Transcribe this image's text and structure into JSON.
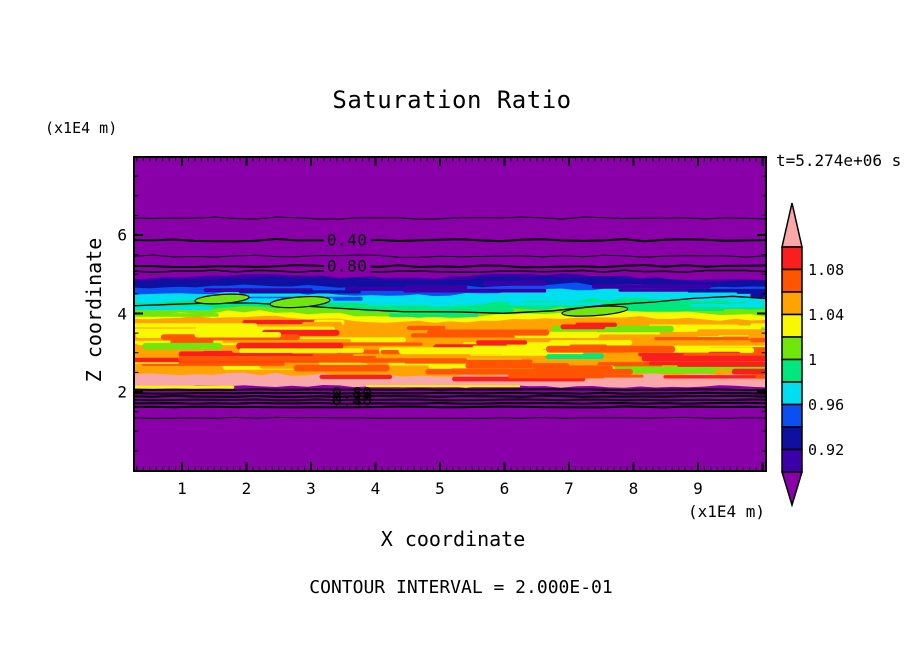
{
  "title": "Saturation Ratio",
  "time_annotation": "t=5.274e+06 s",
  "footer_note": "CONTOUR INTERVAL = 2.000E-01",
  "axes": {
    "x": {
      "label": "X coordinate",
      "unit": "(x1E4 m)",
      "tick_labels": [
        "1",
        "2",
        "3",
        "4",
        "5",
        "6",
        "7",
        "8",
        "9"
      ],
      "tick_values": [
        1,
        2,
        3,
        4,
        5,
        6,
        7,
        8,
        9
      ],
      "range": [
        0.24,
        10.07
      ],
      "minor_step": 0.1,
      "major_step": 1
    },
    "z": {
      "label": "Z coordinate",
      "unit": "(x1E4 m)",
      "tick_labels": [
        "6",
        "4",
        "2"
      ],
      "tick_values": [
        6,
        4,
        2
      ],
      "range": [
        0,
        8.05
      ],
      "minor_step": 0.5,
      "major_step": 2
    }
  },
  "colorbar": {
    "orientation": "vertical",
    "tick_labels": [
      {
        "text": "1.08",
        "level": 1.08
      },
      {
        "text": "1.04",
        "level": 1.04
      },
      {
        "text": "1",
        "level": 1.0
      },
      {
        "text": "0.96",
        "level": 0.96
      },
      {
        "text": "0.92",
        "level": 0.92
      }
    ],
    "cells": [
      {
        "color": "#FA1E1E",
        "min": 1.08,
        "max": 1.1
      },
      {
        "color": "#FF5400",
        "min": 1.06,
        "max": 1.08
      },
      {
        "color": "#FFA300",
        "min": 1.04,
        "max": 1.06
      },
      {
        "color": "#F8F800",
        "min": 1.02,
        "max": 1.04
      },
      {
        "color": "#70E60C",
        "min": 1.0,
        "max": 1.02
      },
      {
        "color": "#00E87D",
        "min": 0.98,
        "max": 1.0
      },
      {
        "color": "#00DFF0",
        "min": 0.96,
        "max": 0.98
      },
      {
        "color": "#0A50F0",
        "min": 0.94,
        "max": 0.96
      },
      {
        "color": "#1010A0",
        "min": 0.92,
        "max": 0.94
      },
      {
        "color": "#3C00A8",
        "min": 0.9,
        "max": 0.92
      }
    ],
    "over": {
      "color": "#F8A8A8",
      "meaning": "> 1.10"
    },
    "under": {
      "color": "#8A00A8",
      "meaning": "< 0.90"
    }
  },
  "chart_data": {
    "type": "heatmap",
    "title": "Saturation Ratio",
    "xlabel": "X coordinate (x1E4 m)",
    "ylabel": "Z coordinate (x1E4 m)",
    "x_range": [
      0.24,
      10.07
    ],
    "z_range": [
      0,
      8.05
    ],
    "time": "t=5.274e+06 s",
    "contour_interval": 0.2,
    "background_value": "< 0.90 (purple) above z=5.0 and below z=2.1",
    "bands": [
      {
        "name": "darkviolet",
        "color": "#3C00A8",
        "value_range": "0.90-0.92",
        "top_profile_z": [
          4.88,
          4.93,
          4.98,
          4.96,
          4.9,
          4.93,
          4.99,
          5.01,
          4.92,
          4.85,
          4.88
        ]
      },
      {
        "name": "navy",
        "color": "#1010A0",
        "value_range": "0.92-0.94",
        "top_profile_z": [
          4.83,
          4.88,
          4.92,
          4.9,
          4.85,
          4.87,
          4.92,
          4.94,
          4.87,
          4.8,
          4.83
        ]
      },
      {
        "name": "blue",
        "color": "#0A50F0",
        "value_range": "0.94-0.96",
        "top_profile_z": [
          4.66,
          4.7,
          4.72,
          4.7,
          4.65,
          4.67,
          4.73,
          4.76,
          4.73,
          4.68,
          4.7
        ]
      },
      {
        "name": "cyan",
        "color": "#00DFF0",
        "value_range": "0.96-0.98",
        "top_profile_z": [
          4.48,
          4.52,
          4.55,
          4.5,
          4.45,
          4.47,
          4.56,
          4.61,
          4.63,
          4.58,
          4.53
        ]
      },
      {
        "name": "springgreen",
        "color": "#00E87D",
        "value_range": "0.98-1.00",
        "top_profile_z": [
          4.28,
          4.32,
          4.35,
          4.3,
          4.22,
          4.2,
          4.3,
          4.35,
          4.38,
          4.33,
          4.28
        ]
      },
      {
        "name": "chartreuse",
        "color": "#70E60C",
        "value_range": "1.00-1.02",
        "top_profile_z": [
          4.1,
          4.14,
          4.17,
          4.12,
          4.04,
          4.01,
          4.1,
          4.15,
          4.18,
          4.13,
          4.08
        ]
      },
      {
        "name": "yellow",
        "color": "#F8F800",
        "value_range": "1.02-1.04",
        "top_profile_z": [
          3.99,
          4.03,
          4.06,
          4.01,
          3.93,
          3.9,
          3.98,
          4.02,
          4.05,
          4.0,
          3.95
        ]
      },
      {
        "name": "orange",
        "color": "#FFA300",
        "value_range": "1.04-1.06",
        "top_profile_z": [
          3.86,
          3.9,
          3.92,
          3.87,
          3.8,
          3.77,
          3.85,
          3.88,
          3.91,
          3.86,
          3.82
        ]
      },
      {
        "name": "pink-over",
        "color": "#F8A8A8",
        "value_range": "> 1.10",
        "top_profile_z": [
          2.45,
          2.47,
          2.46,
          2.44,
          2.42,
          2.4,
          2.42,
          2.44,
          2.46,
          2.45,
          2.43
        ]
      },
      {
        "name": "purple-under",
        "color": "#8A00A8",
        "value_range": "< 0.90",
        "top_profile_z": [
          2.145,
          2.14,
          2.145,
          2.14,
          2.145,
          2.14,
          2.145,
          2.14,
          2.145,
          2.14,
          2.145
        ]
      }
    ],
    "contour_lines_upper": [
      {
        "z": 6.43,
        "width": 1
      },
      {
        "z": 5.87,
        "width": 2,
        "label": "0.40",
        "label_x": 3.56
      },
      {
        "z": 5.46,
        "width": 1
      },
      {
        "z": 5.21,
        "width": 2,
        "label": "0.80",
        "label_x": 3.56
      },
      {
        "z": 5.08,
        "width": 1.5
      }
    ],
    "contour_lines_lower": [
      {
        "z": 2.06,
        "width": 2
      },
      {
        "z": 1.97,
        "width": 2,
        "label": "0.80",
        "label_x": 3.64
      },
      {
        "z": 1.89,
        "width": 2
      },
      {
        "z": 1.8,
        "width": 2,
        "label": "0.40",
        "label_x": 3.64
      },
      {
        "z": 1.71,
        "width": 2
      },
      {
        "z": 1.62,
        "width": 2
      },
      {
        "z": 1.34,
        "width": 1
      }
    ],
    "isoline_1_00": {
      "level": 1.0,
      "points": [
        [
          0.24,
          4.19
        ],
        [
          0.86,
          4.24
        ],
        [
          1.48,
          4.29
        ],
        [
          2.1,
          4.27
        ],
        [
          2.88,
          4.19
        ],
        [
          3.65,
          4.11
        ],
        [
          4.43,
          4.06
        ],
        [
          5.2,
          4.04
        ],
        [
          5.98,
          4.01
        ],
        [
          6.75,
          4.06
        ],
        [
          7.53,
          4.19
        ],
        [
          8.3,
          4.29
        ],
        [
          8.92,
          4.37
        ],
        [
          9.54,
          4.42
        ],
        [
          10.07,
          4.39
        ]
      ]
    },
    "closed_contours": [
      {
        "x": 1.62,
        "z": 4.37,
        "rx": 0.42,
        "rz": 0.115
      },
      {
        "x": 2.83,
        "z": 4.29,
        "rx": 0.465,
        "rz": 0.13
      },
      {
        "x": 7.4,
        "z": 4.06,
        "rx": 0.51,
        "rz": 0.115
      }
    ]
  }
}
